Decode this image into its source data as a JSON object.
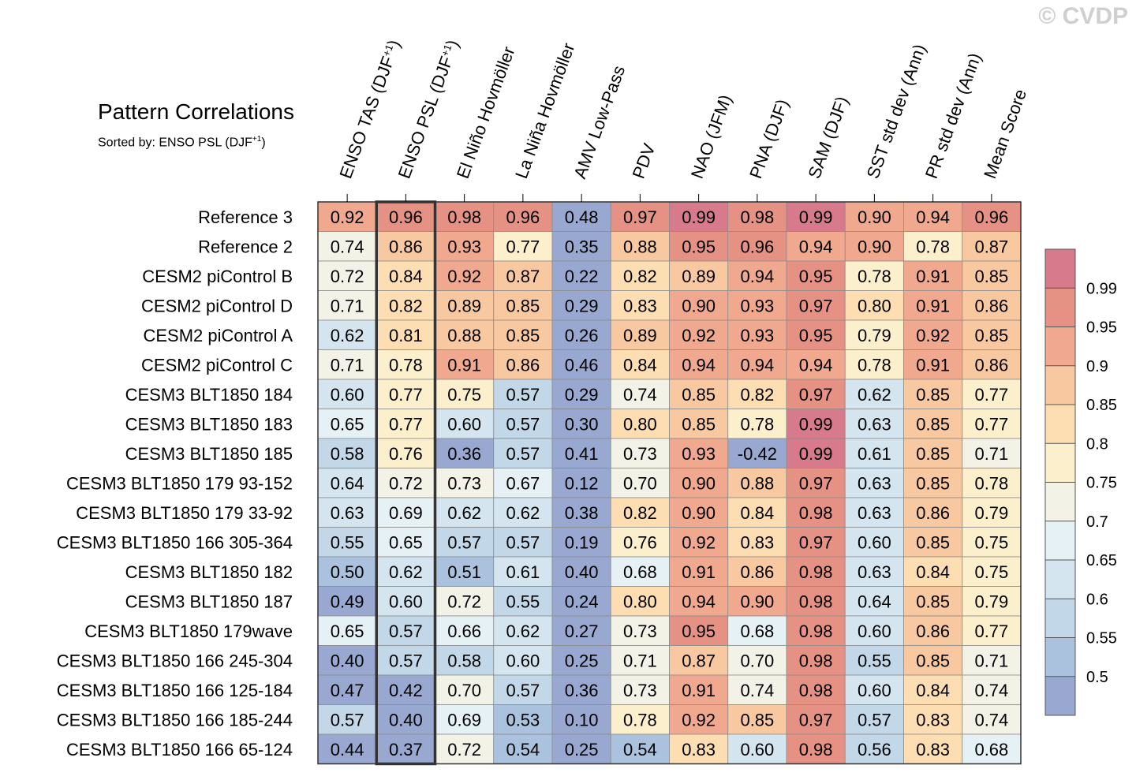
{
  "watermark": "© CVDP",
  "chart_data": {
    "type": "heatmap",
    "title": "Pattern Correlations",
    "subtitle": "Sorted by: ENSO PSL (DJF+1)",
    "columns": [
      "ENSO TAS (DJF+1)",
      "ENSO PSL (DJF+1)",
      "El Niño Hovmöller",
      "La Niña Hovmöller",
      "AMV Low-Pass",
      "PDV",
      "NAO (JFM)",
      "PNA (DJF)",
      "SAM (DJF)",
      "SST std dev (Ann)",
      "PR std dev (Ann)",
      "Mean Score"
    ],
    "rows": [
      "Reference 3",
      "Reference 2",
      "CESM2 piControl B",
      "CESM2 piControl D",
      "CESM2 piControl A",
      "CESM2 piControl C",
      "CESM3 BLT1850 184",
      "CESM3 BLT1850 183",
      "CESM3 BLT1850 185",
      "CESM3 BLT1850 179 93-152",
      "CESM3 BLT1850 179 33-92",
      "CESM3 BLT1850 166 305-364",
      "CESM3 BLT1850 182",
      "CESM3 BLT1850 187",
      "CESM3 BLT1850 179wave",
      "CESM3 BLT1850 166 245-304",
      "CESM3 BLT1850 166 125-184",
      "CESM3 BLT1850 166 185-244",
      "CESM3 BLT1850 166 65-124"
    ],
    "values": [
      [
        0.92,
        0.96,
        0.98,
        0.96,
        0.48,
        0.97,
        0.99,
        0.98,
        0.99,
        0.9,
        0.94,
        0.96
      ],
      [
        0.74,
        0.86,
        0.93,
        0.77,
        0.35,
        0.88,
        0.95,
        0.96,
        0.94,
        0.9,
        0.78,
        0.87
      ],
      [
        0.72,
        0.84,
        0.92,
        0.87,
        0.22,
        0.82,
        0.89,
        0.94,
        0.95,
        0.78,
        0.91,
        0.85
      ],
      [
        0.71,
        0.82,
        0.89,
        0.85,
        0.29,
        0.83,
        0.9,
        0.93,
        0.97,
        0.8,
        0.91,
        0.86
      ],
      [
        0.62,
        0.81,
        0.88,
        0.85,
        0.26,
        0.89,
        0.92,
        0.93,
        0.95,
        0.79,
        0.92,
        0.85
      ],
      [
        0.71,
        0.78,
        0.91,
        0.86,
        0.46,
        0.84,
        0.94,
        0.94,
        0.94,
        0.78,
        0.91,
        0.86
      ],
      [
        0.6,
        0.77,
        0.75,
        0.57,
        0.29,
        0.74,
        0.85,
        0.82,
        0.97,
        0.62,
        0.85,
        0.77
      ],
      [
        0.65,
        0.77,
        0.6,
        0.57,
        0.3,
        0.8,
        0.85,
        0.78,
        0.99,
        0.63,
        0.85,
        0.77
      ],
      [
        0.58,
        0.76,
        0.36,
        0.57,
        0.41,
        0.73,
        0.93,
        -0.42,
        0.99,
        0.61,
        0.85,
        0.71
      ],
      [
        0.64,
        0.72,
        0.73,
        0.67,
        0.12,
        0.7,
        0.9,
        0.88,
        0.97,
        0.63,
        0.85,
        0.78
      ],
      [
        0.63,
        0.69,
        0.62,
        0.62,
        0.38,
        0.82,
        0.9,
        0.84,
        0.98,
        0.63,
        0.86,
        0.79
      ],
      [
        0.55,
        0.65,
        0.57,
        0.57,
        0.19,
        0.76,
        0.92,
        0.83,
        0.97,
        0.6,
        0.85,
        0.75
      ],
      [
        0.5,
        0.62,
        0.51,
        0.61,
        0.4,
        0.68,
        0.91,
        0.86,
        0.98,
        0.63,
        0.84,
        0.75
      ],
      [
        0.49,
        0.6,
        0.72,
        0.55,
        0.24,
        0.8,
        0.94,
        0.9,
        0.98,
        0.64,
        0.85,
        0.79
      ],
      [
        0.65,
        0.57,
        0.66,
        0.62,
        0.27,
        0.73,
        0.95,
        0.68,
        0.98,
        0.6,
        0.86,
        0.77
      ],
      [
        0.4,
        0.57,
        0.58,
        0.6,
        0.25,
        0.71,
        0.87,
        0.7,
        0.98,
        0.55,
        0.85,
        0.71
      ],
      [
        0.47,
        0.42,
        0.7,
        0.57,
        0.36,
        0.73,
        0.91,
        0.74,
        0.98,
        0.6,
        0.84,
        0.74
      ],
      [
        0.57,
        0.4,
        0.69,
        0.53,
        0.1,
        0.78,
        0.92,
        0.85,
        0.97,
        0.57,
        0.83,
        0.74
      ],
      [
        0.44,
        0.37,
        0.72,
        0.54,
        0.25,
        0.54,
        0.83,
        0.6,
        0.98,
        0.56,
        0.83,
        0.68
      ]
    ],
    "highlighted_column": "ENSO PSL (DJF+1)",
    "colorbar": {
      "levels": [
        0.5,
        0.55,
        0.6,
        0.65,
        0.7,
        0.75,
        0.8,
        0.85,
        0.9,
        0.95,
        0.99
      ],
      "tick_labels": [
        "0.5",
        "0.55",
        "0.6",
        "0.65",
        "0.7",
        "0.75",
        "0.8",
        "0.85",
        "0.9",
        "0.95",
        "0.99"
      ],
      "colors": [
        "#98a8d0",
        "#abc2de",
        "#c2d8e9",
        "#d4e5f0",
        "#e6f1f6",
        "#f3f2e6",
        "#fcefcc",
        "#fcdeb2",
        "#f8c8a1",
        "#f0a88e",
        "#e59285",
        "#d67a8c"
      ]
    }
  }
}
